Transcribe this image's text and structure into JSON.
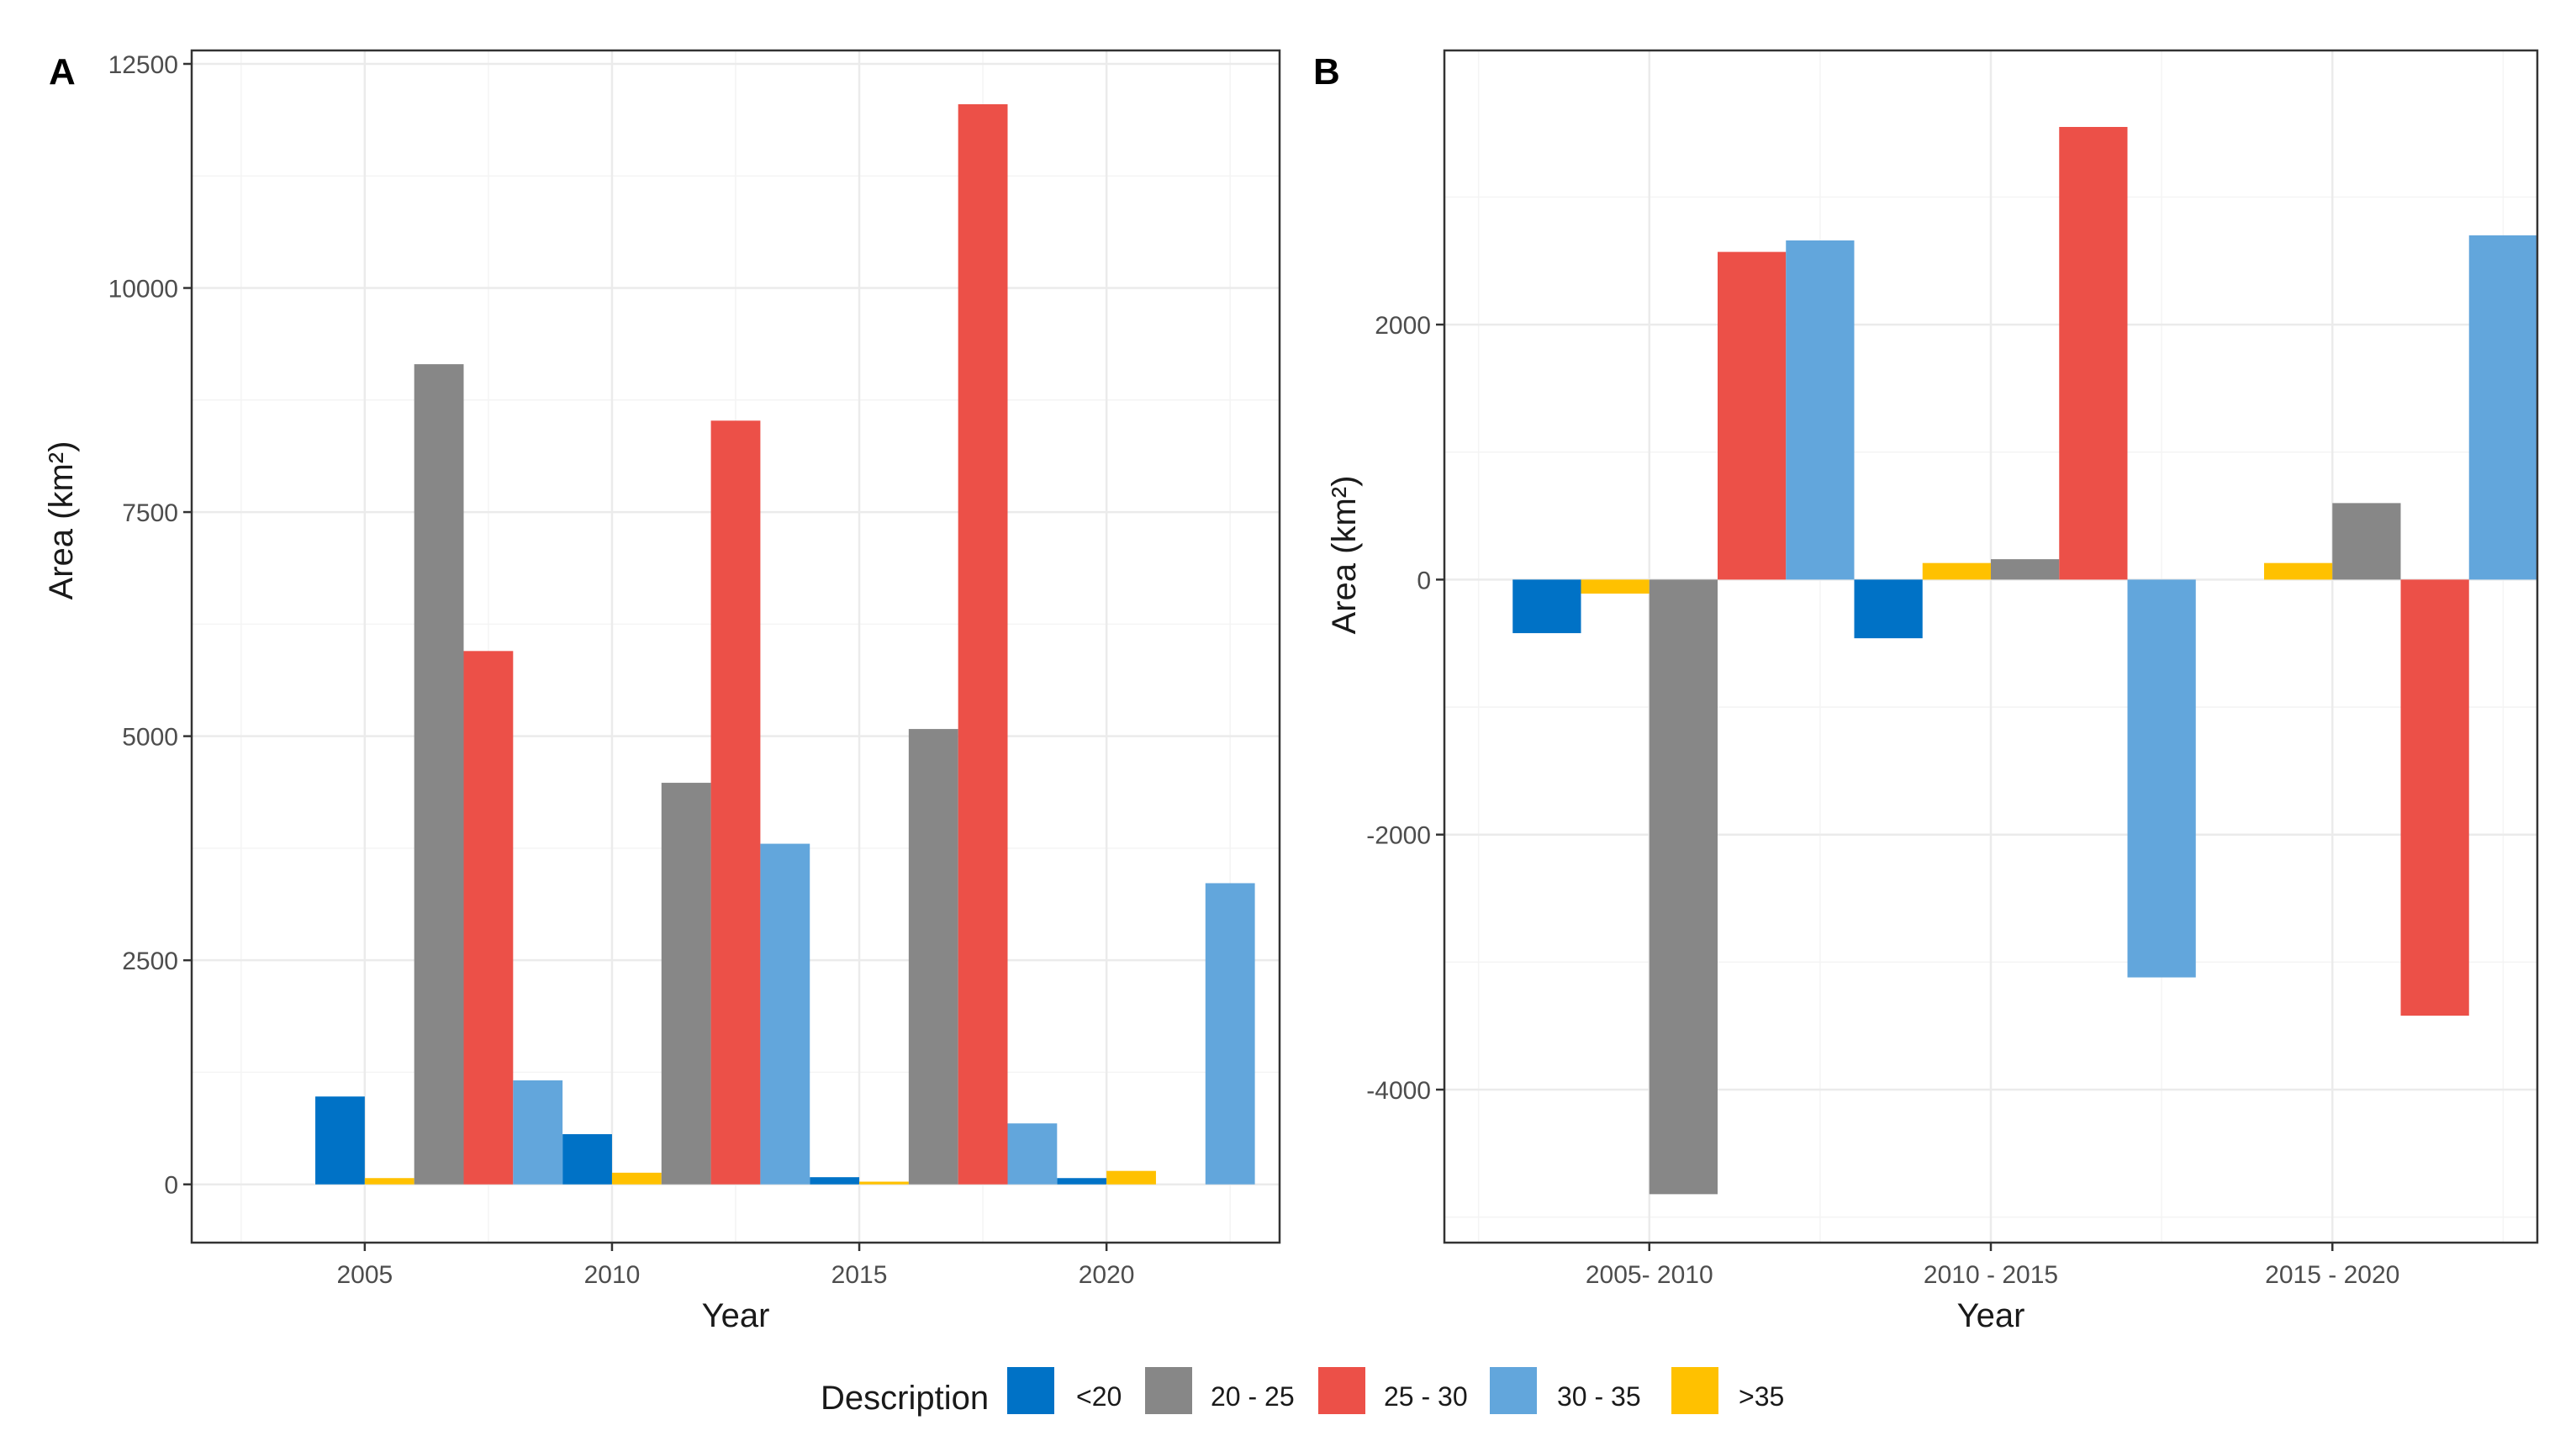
{
  "legend": {
    "title": "Description",
    "colors": {
      "<20": "#0072C6",
      "20 - 25": "#878787",
      "25 - 30": "#EC5048",
      "30 - 35": "#62A6DC",
      ">35": "#FFC100"
    }
  },
  "chart_data": [
    {
      "type": "bar",
      "panel_tag": "A",
      "xlabel": "Year",
      "ylabel": "Area (km²)",
      "ylim": [
        -650,
        12650
      ],
      "yticks": [
        0,
        2500,
        5000,
        7500,
        10000,
        12500
      ],
      "ytick_labels": [
        "0",
        "2500",
        "5000",
        "7500",
        "10000",
        "12500"
      ],
      "categories": [
        "2005",
        "2010",
        "2015",
        "2020"
      ],
      "xlim": [
        0.3,
        4.7
      ],
      "grid": true,
      "series": [
        {
          "name": "<20",
          "x": [
            0.9,
            1.9,
            2.9,
            3.9
          ],
          "values": [
            980,
            560,
            80,
            70
          ]
        },
        {
          "name": ">35",
          "x": [
            1.1,
            2.1,
            3.1,
            4.1
          ],
          "values": [
            70,
            130,
            30,
            150
          ]
        },
        {
          "name": "20 - 25",
          "x": [
            1.3,
            2.3,
            3.3,
            4.3
          ],
          "values": [
            9150,
            4480,
            5080,
            0
          ]
        },
        {
          "name": "25 - 30",
          "x": [
            1.5,
            2.5,
            3.5,
            4.5
          ],
          "values": [
            5950,
            8520,
            12050,
            0
          ]
        },
        {
          "name": "30 - 35",
          "x": [
            1.7,
            2.7,
            3.7,
            4.5
          ],
          "values": [
            1160,
            3800,
            680,
            3360
          ]
        }
      ]
    },
    {
      "type": "bar",
      "panel_tag": "B",
      "xlabel": "Year",
      "ylabel": "Area (km²)",
      "ylim": [
        -5200,
        4150
      ],
      "yticks": [
        -4000,
        -2000,
        0,
        2000
      ],
      "ytick_labels": [
        "-4000",
        "-2000",
        "0",
        "2000"
      ],
      "categories": [
        "2005- 2010",
        "2010 - 2015",
        "2015 - 2020"
      ],
      "xlim": [
        0.4,
        3.6
      ],
      "grid": true,
      "series": [
        {
          "name": "<20",
          "x": [
            0.7,
            1.7,
            2.7
          ],
          "values": [
            -420,
            -460,
            0
          ]
        },
        {
          "name": ">35",
          "x": [
            0.9,
            1.9,
            2.9
          ],
          "values": [
            -110,
            130,
            130
          ]
        },
        {
          "name": "20 - 25",
          "x": [
            1.1,
            2.1,
            3.1
          ],
          "values": [
            -4820,
            160,
            600
          ]
        },
        {
          "name": "25 - 30",
          "x": [
            1.3,
            2.3,
            3.3
          ],
          "values": [
            2570,
            3550,
            -3420
          ]
        },
        {
          "name": "30 - 35",
          "x": [
            1.5,
            2.5,
            3.5
          ],
          "values": [
            2660,
            -3120,
            2700
          ]
        }
      ]
    }
  ]
}
